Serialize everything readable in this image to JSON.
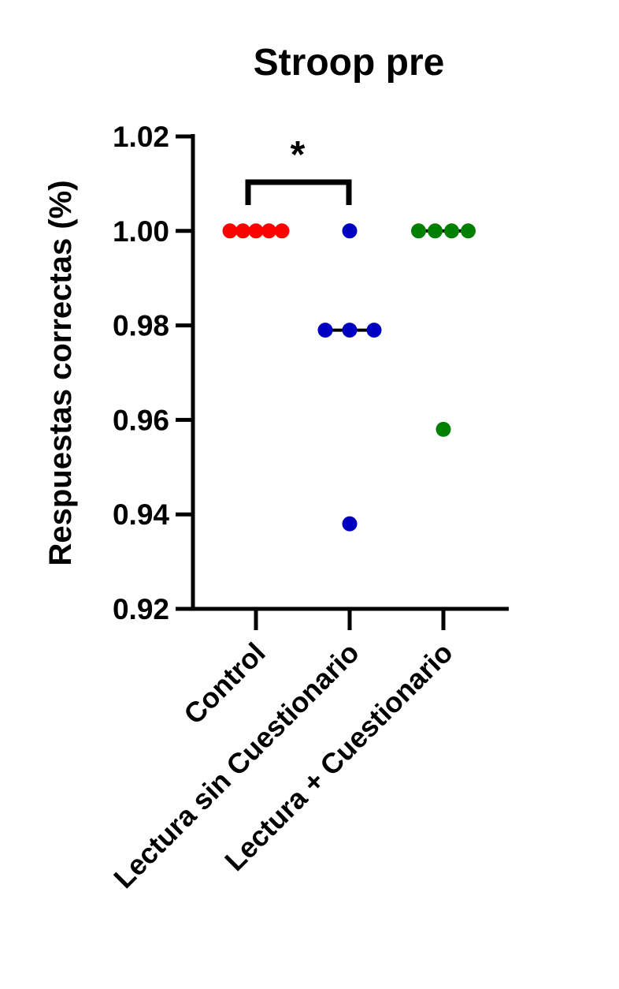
{
  "chart_data": {
    "type": "dot",
    "title": "Stroop pre",
    "y_label": "Respuestas correctas (%)",
    "categories": [
      "Control",
      "Lectura sin Cuestionario",
      "Lectura + Cuestionario"
    ],
    "values": [
      [
        1,
        1,
        1,
        1,
        1
      ],
      [
        1,
        0.979,
        0.979,
        0.979,
        0.938
      ],
      [
        1,
        1,
        1,
        1,
        0.958
      ]
    ],
    "medians": [
      1,
      0.979,
      1
    ],
    "colors": [
      "#ff0000",
      "#0000c0",
      "#008000"
    ],
    "significance": "*",
    "ylim": [
      0.92,
      1.02
    ],
    "yticks": [
      0.92,
      0.94,
      0.96,
      0.98,
      {
        "value": 1,
        "label": "1.00"
      },
      1.02
    ]
  }
}
